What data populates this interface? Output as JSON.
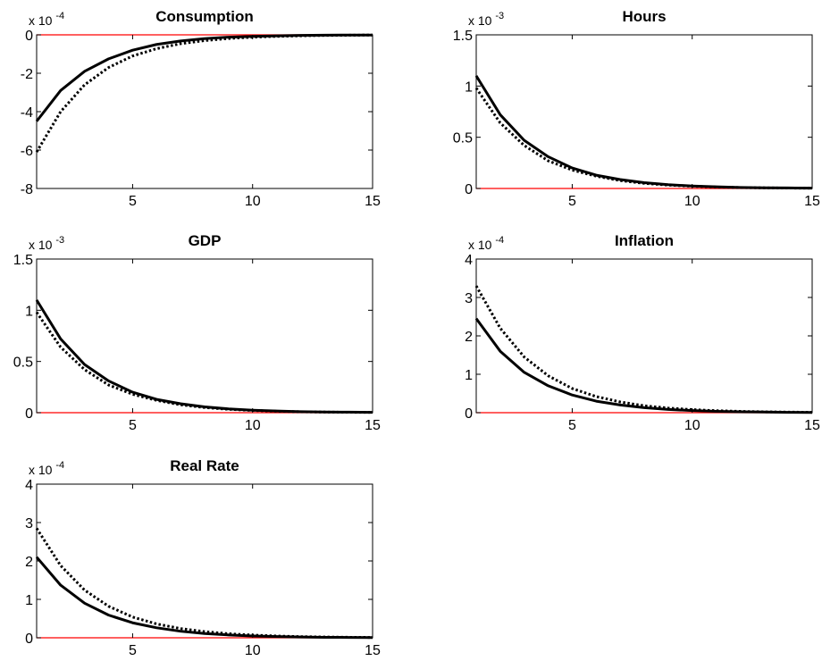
{
  "colors": {
    "series_line": "#000000",
    "zero_line": "#ff0000",
    "axes": "#000000",
    "background": "#ffffff"
  },
  "chart_data": [
    {
      "type": "line",
      "title": "Consumption",
      "scale_base": "x 10",
      "scale_exponent": "-4",
      "xlim": [
        1,
        15
      ],
      "ylim": [
        -8,
        0
      ],
      "xticks": [
        5,
        10,
        15
      ],
      "xtick_labels": [
        "5",
        "10",
        "15"
      ],
      "yticks": [
        0,
        -2,
        -4,
        -6,
        -8
      ],
      "ytick_labels": [
        "0",
        "-2",
        "-4",
        "-6",
        "-8"
      ],
      "zero_line": true,
      "x": [
        1,
        2,
        3,
        4,
        5,
        6,
        7,
        8,
        9,
        10,
        11,
        12,
        13,
        14,
        15
      ],
      "series": [
        {
          "style": "solid",
          "values": [
            -4.5,
            -2.9,
            -1.9,
            -1.25,
            -0.8,
            -0.5,
            -0.32,
            -0.2,
            -0.12,
            -0.08,
            -0.05,
            -0.03,
            -0.02,
            -0.01,
            -0.01
          ]
        },
        {
          "style": "dotted",
          "values": [
            -6.1,
            -4.0,
            -2.6,
            -1.7,
            -1.1,
            -0.72,
            -0.46,
            -0.3,
            -0.19,
            -0.12,
            -0.08,
            -0.05,
            -0.03,
            -0.02,
            -0.01
          ]
        }
      ]
    },
    {
      "type": "line",
      "title": "Hours",
      "scale_base": "x 10",
      "scale_exponent": "-3",
      "xlim": [
        1,
        15
      ],
      "ylim": [
        0,
        1.5
      ],
      "xticks": [
        5,
        10,
        15
      ],
      "xtick_labels": [
        "5",
        "10",
        "15"
      ],
      "yticks": [
        0,
        0.5,
        1,
        1.5
      ],
      "ytick_labels": [
        "0",
        "0.5",
        "1",
        "1.5"
      ],
      "zero_line": true,
      "x": [
        1,
        2,
        3,
        4,
        5,
        6,
        7,
        8,
        9,
        10,
        11,
        12,
        13,
        14,
        15
      ],
      "series": [
        {
          "style": "solid",
          "values": [
            1.1,
            0.72,
            0.47,
            0.31,
            0.2,
            0.13,
            0.087,
            0.057,
            0.037,
            0.024,
            0.016,
            0.01,
            0.007,
            0.005,
            0.003
          ]
        },
        {
          "style": "dotted",
          "values": [
            0.98,
            0.64,
            0.42,
            0.27,
            0.18,
            0.12,
            0.077,
            0.05,
            0.033,
            0.022,
            0.014,
            0.009,
            0.006,
            0.004,
            0.003
          ]
        }
      ]
    },
    {
      "type": "line",
      "title": "GDP",
      "scale_base": "x 10",
      "scale_exponent": "-3",
      "xlim": [
        1,
        15
      ],
      "ylim": [
        0,
        1.5
      ],
      "xticks": [
        5,
        10,
        15
      ],
      "xtick_labels": [
        "5",
        "10",
        "15"
      ],
      "yticks": [
        0,
        0.5,
        1,
        1.5
      ],
      "ytick_labels": [
        "0",
        "0.5",
        "1",
        "1.5"
      ],
      "zero_line": true,
      "x": [
        1,
        2,
        3,
        4,
        5,
        6,
        7,
        8,
        9,
        10,
        11,
        12,
        13,
        14,
        15
      ],
      "series": [
        {
          "style": "solid",
          "values": [
            1.1,
            0.72,
            0.47,
            0.31,
            0.2,
            0.13,
            0.087,
            0.057,
            0.037,
            0.024,
            0.016,
            0.01,
            0.007,
            0.005,
            0.003
          ]
        },
        {
          "style": "dotted",
          "values": [
            0.98,
            0.64,
            0.42,
            0.27,
            0.18,
            0.12,
            0.077,
            0.05,
            0.033,
            0.022,
            0.014,
            0.009,
            0.006,
            0.004,
            0.003
          ]
        }
      ]
    },
    {
      "type": "line",
      "title": "Inflation",
      "scale_base": "x 10",
      "scale_exponent": "-4",
      "xlim": [
        1,
        15
      ],
      "ylim": [
        0,
        4
      ],
      "xticks": [
        5,
        10,
        15
      ],
      "xtick_labels": [
        "5",
        "10",
        "15"
      ],
      "yticks": [
        0,
        1,
        2,
        3,
        4
      ],
      "ytick_labels": [
        "0",
        "1",
        "2",
        "3",
        "4"
      ],
      "zero_line": true,
      "x": [
        1,
        2,
        3,
        4,
        5,
        6,
        7,
        8,
        9,
        10,
        11,
        12,
        13,
        14,
        15
      ],
      "series": [
        {
          "style": "solid",
          "values": [
            2.45,
            1.6,
            1.05,
            0.7,
            0.46,
            0.3,
            0.2,
            0.13,
            0.085,
            0.055,
            0.036,
            0.024,
            0.016,
            0.01,
            0.007
          ]
        },
        {
          "style": "dotted",
          "values": [
            3.3,
            2.2,
            1.45,
            0.96,
            0.63,
            0.42,
            0.28,
            0.18,
            0.12,
            0.08,
            0.052,
            0.034,
            0.022,
            0.015,
            0.01
          ]
        }
      ]
    },
    {
      "type": "line",
      "title": "Real Rate",
      "scale_base": "x 10",
      "scale_exponent": "-4",
      "xlim": [
        1,
        15
      ],
      "ylim": [
        0,
        4
      ],
      "xticks": [
        5,
        10,
        15
      ],
      "xtick_labels": [
        "5",
        "10",
        "15"
      ],
      "yticks": [
        0,
        1,
        2,
        3,
        4
      ],
      "ytick_labels": [
        "0",
        "1",
        "2",
        "3",
        "4"
      ],
      "zero_line": true,
      "x": [
        1,
        2,
        3,
        4,
        5,
        6,
        7,
        8,
        9,
        10,
        11,
        12,
        13,
        14,
        15
      ],
      "series": [
        {
          "style": "solid",
          "values": [
            2.1,
            1.37,
            0.9,
            0.59,
            0.39,
            0.26,
            0.17,
            0.11,
            0.073,
            0.048,
            0.031,
            0.02,
            0.013,
            0.009,
            0.006
          ]
        },
        {
          "style": "dotted",
          "values": [
            2.85,
            1.88,
            1.24,
            0.82,
            0.54,
            0.36,
            0.24,
            0.16,
            0.105,
            0.07,
            0.046,
            0.03,
            0.02,
            0.013,
            0.009
          ]
        }
      ]
    }
  ]
}
